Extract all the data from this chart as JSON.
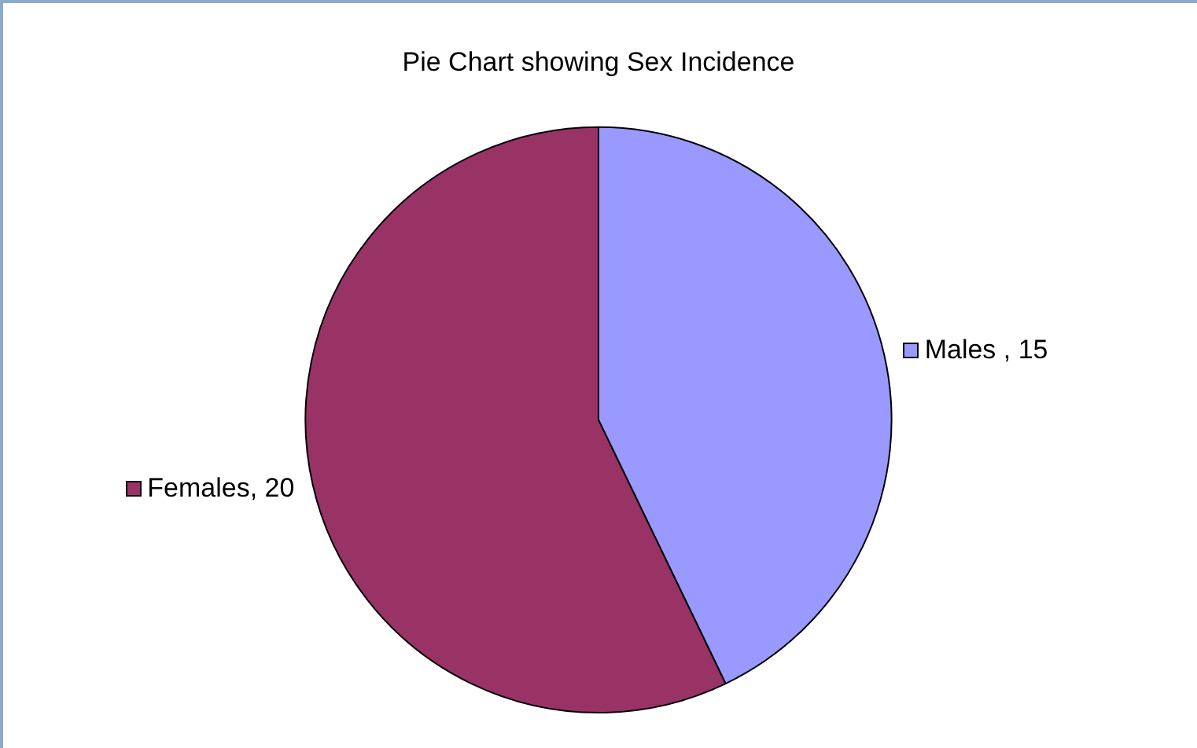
{
  "chart_data": {
    "type": "pie",
    "title": "Pie Chart showing Sex Incidence",
    "categories": [
      "Males",
      "Females"
    ],
    "values": [
      15,
      20
    ],
    "colors": [
      "#9999ff",
      "#993366"
    ],
    "value_labels": [
      " , 15",
      ", 20"
    ],
    "legend": true
  }
}
